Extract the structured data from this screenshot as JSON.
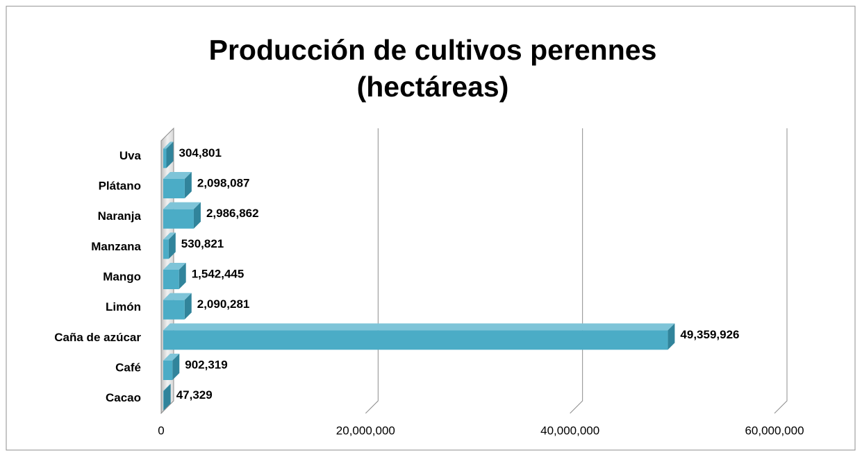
{
  "chart_data": {
    "type": "bar3d_horizontal",
    "title": [
      "Producción de cultivos perennes",
      "(hectáreas)"
    ],
    "categories": [
      "Cacao",
      "Café",
      "Caña de azúcar",
      "Limón",
      "Mango",
      "Manzana",
      "Naranja",
      "Plátano",
      "Uva"
    ],
    "values": [
      47329,
      902319,
      49359926,
      2090281,
      1542445,
      530821,
      2986862,
      2098087,
      304801
    ],
    "value_labels": [
      "47,329",
      "902,319",
      "49,359,926",
      "2,090,281",
      "1,542,445",
      "530,821",
      "2,986,862",
      "2,098,087",
      "304,801"
    ],
    "color": "#4bacc6",
    "xlim": [
      0,
      60000000
    ],
    "xticks": [
      0,
      {
        "value": 20000000,
        "label": "20,000,000"
      },
      {
        "value": 40000000,
        "label": "40,000,000"
      },
      {
        "value": 60000000,
        "label": "60,000,000"
      }
    ],
    "grid": true
  }
}
